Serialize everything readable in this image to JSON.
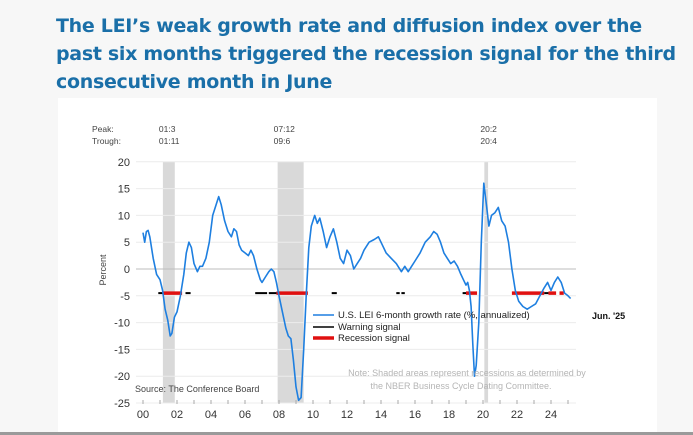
{
  "headline": "The LEI’s weak growth rate and diffusion index over the past six months triggered the recession signal for the third consecutive month in June",
  "chart_data": {
    "type": "line",
    "title": "",
    "ylabel": "Percent",
    "xlabel": "",
    "ylim": [
      -25,
      20
    ],
    "xlim": [
      2000,
      2025.7
    ],
    "y_ticks": [
      "20",
      "15",
      "10",
      "5",
      "0",
      "-5",
      "-10",
      "-15",
      "-20",
      "-25"
    ],
    "y_tick_values": [
      20,
      15,
      10,
      5,
      0,
      -5,
      -10,
      -15,
      -20,
      -25
    ],
    "x_ticks": [
      "00",
      "02",
      "04",
      "06",
      "08",
      "10",
      "12",
      "14",
      "16",
      "18",
      "20",
      "22",
      "24"
    ],
    "x_tick_values": [
      2000,
      2002,
      2004,
      2006,
      2008,
      2010,
      2012,
      2014,
      2016,
      2018,
      2020,
      2022,
      2024
    ],
    "grid": true,
    "peak_label": "Peak:",
    "trough_label": "Trough:",
    "recessions": [
      {
        "peak": "01:3",
        "trough": "01:11",
        "start": 2001.17,
        "end": 2001.87
      },
      {
        "peak": "07:12",
        "trough": "09:6",
        "start": 2007.92,
        "end": 2009.45
      },
      {
        "peak": "20:2",
        "trough": "20:4",
        "start": 2020.08,
        "end": 2020.3
      }
    ],
    "series": [
      {
        "name": "U.S. LEI 6-month growth rate (%, annualized)",
        "color": "#1e7fe0",
        "points": [
          [
            2000.0,
            6.8
          ],
          [
            2000.1,
            5.0
          ],
          [
            2000.2,
            7.0
          ],
          [
            2000.3,
            7.2
          ],
          [
            2000.4,
            6.0
          ],
          [
            2000.6,
            2.0
          ],
          [
            2000.8,
            -1.0
          ],
          [
            2001.0,
            -2.0
          ],
          [
            2001.15,
            -4.0
          ],
          [
            2001.3,
            -7.5
          ],
          [
            2001.45,
            -9.5
          ],
          [
            2001.6,
            -12.5
          ],
          [
            2001.7,
            -12.0
          ],
          [
            2001.85,
            -9.0
          ],
          [
            2002.0,
            -8.0
          ],
          [
            2002.2,
            -5.0
          ],
          [
            2002.4,
            -1.0
          ],
          [
            2002.55,
            3.0
          ],
          [
            2002.7,
            5.0
          ],
          [
            2002.85,
            4.0
          ],
          [
            2003.0,
            1.0
          ],
          [
            2003.2,
            -0.5
          ],
          [
            2003.35,
            0.5
          ],
          [
            2003.5,
            0.5
          ],
          [
            2003.7,
            2.0
          ],
          [
            2003.9,
            5.0
          ],
          [
            2004.1,
            10.0
          ],
          [
            2004.3,
            12.0
          ],
          [
            2004.45,
            13.5
          ],
          [
            2004.6,
            12.0
          ],
          [
            2004.8,
            9.0
          ],
          [
            2005.0,
            7.0
          ],
          [
            2005.2,
            6.0
          ],
          [
            2005.35,
            7.5
          ],
          [
            2005.5,
            7.0
          ],
          [
            2005.65,
            4.5
          ],
          [
            2005.8,
            3.5
          ],
          [
            2006.0,
            3.0
          ],
          [
            2006.2,
            2.5
          ],
          [
            2006.35,
            3.5
          ],
          [
            2006.5,
            2.5
          ],
          [
            2006.7,
            0.0
          ],
          [
            2006.9,
            -2.0
          ],
          [
            2007.0,
            -2.5
          ],
          [
            2007.2,
            -1.5
          ],
          [
            2007.4,
            -0.5
          ],
          [
            2007.55,
            0.0
          ],
          [
            2007.7,
            -0.5
          ],
          [
            2007.85,
            -2.5
          ],
          [
            2008.0,
            -5.0
          ],
          [
            2008.2,
            -8.0
          ],
          [
            2008.4,
            -11.0
          ],
          [
            2008.55,
            -12.5
          ],
          [
            2008.7,
            -13.0
          ],
          [
            2008.85,
            -17.0
          ],
          [
            2009.0,
            -22.0
          ],
          [
            2009.15,
            -24.5
          ],
          [
            2009.3,
            -24.0
          ],
          [
            2009.45,
            -15.0
          ],
          [
            2009.6,
            -5.0
          ],
          [
            2009.75,
            4.0
          ],
          [
            2009.9,
            8.0
          ],
          [
            2010.1,
            10.0
          ],
          [
            2010.25,
            8.5
          ],
          [
            2010.4,
            9.5
          ],
          [
            2010.6,
            7.0
          ],
          [
            2010.8,
            4.0
          ],
          [
            2011.0,
            6.0
          ],
          [
            2011.2,
            7.5
          ],
          [
            2011.4,
            5.0
          ],
          [
            2011.6,
            2.0
          ],
          [
            2011.8,
            1.0
          ],
          [
            2012.0,
            3.5
          ],
          [
            2012.2,
            2.5
          ],
          [
            2012.4,
            0.0
          ],
          [
            2012.6,
            1.0
          ],
          [
            2012.8,
            2.0
          ],
          [
            2013.0,
            3.5
          ],
          [
            2013.3,
            5.0
          ],
          [
            2013.6,
            5.5
          ],
          [
            2013.85,
            6.0
          ],
          [
            2014.0,
            5.0
          ],
          [
            2014.3,
            3.0
          ],
          [
            2014.6,
            2.0
          ],
          [
            2014.9,
            1.0
          ],
          [
            2015.2,
            -0.5
          ],
          [
            2015.4,
            0.5
          ],
          [
            2015.6,
            -0.5
          ],
          [
            2015.8,
            0.5
          ],
          [
            2016.0,
            1.5
          ],
          [
            2016.3,
            3.0
          ],
          [
            2016.6,
            5.0
          ],
          [
            2016.9,
            6.0
          ],
          [
            2017.1,
            7.0
          ],
          [
            2017.3,
            6.5
          ],
          [
            2017.5,
            5.0
          ],
          [
            2017.7,
            3.0
          ],
          [
            2017.9,
            2.0
          ],
          [
            2018.1,
            1.0
          ],
          [
            2018.3,
            1.5
          ],
          [
            2018.5,
            0.5
          ],
          [
            2018.7,
            -1.0
          ],
          [
            2018.85,
            -2.0
          ],
          [
            2019.0,
            -3.0
          ],
          [
            2019.1,
            -2.5
          ],
          [
            2019.2,
            -4.0
          ],
          [
            2019.3,
            -7.0
          ],
          [
            2019.4,
            -14.0
          ],
          [
            2019.5,
            -20.0
          ],
          [
            2019.6,
            -18.0
          ],
          [
            2019.75,
            -10.0
          ],
          [
            2019.9,
            5.0
          ],
          [
            2020.05,
            16.0
          ],
          [
            2020.2,
            12.0
          ],
          [
            2020.35,
            8.0
          ],
          [
            2020.5,
            10.0
          ],
          [
            2020.7,
            10.5
          ],
          [
            2020.9,
            11.5
          ],
          [
            2021.1,
            9.0
          ],
          [
            2021.3,
            8.0
          ],
          [
            2021.5,
            5.0
          ],
          [
            2021.7,
            0.0
          ],
          [
            2021.9,
            -4.0
          ],
          [
            2022.1,
            -6.0
          ],
          [
            2022.35,
            -7.0
          ],
          [
            2022.6,
            -7.5
          ],
          [
            2022.85,
            -7.0
          ],
          [
            2023.1,
            -6.5
          ],
          [
            2023.35,
            -5.0
          ],
          [
            2023.6,
            -3.5
          ],
          [
            2023.8,
            -2.5
          ],
          [
            2024.0,
            -4.0
          ],
          [
            2024.2,
            -2.5
          ],
          [
            2024.4,
            -1.5
          ],
          [
            2024.6,
            -2.5
          ],
          [
            2024.8,
            -4.5
          ],
          [
            2025.0,
            -5.0
          ],
          [
            2025.15,
            -5.5
          ]
        ]
      }
    ],
    "warning_signal": {
      "name": "Warning signal",
      "color": "#000000",
      "level": -4.5,
      "segments": [
        [
          2000.9,
          2001.2
        ],
        [
          2002.5,
          2002.8
        ],
        [
          2006.6,
          2007.3
        ],
        [
          2007.4,
          2007.85
        ],
        [
          2011.1,
          2011.4
        ],
        [
          2014.9,
          2015.1
        ],
        [
          2015.2,
          2015.4
        ],
        [
          2018.8,
          2019.0
        ],
        [
          2023.6,
          2023.85
        ]
      ]
    },
    "recession_signal": {
      "name": "Recession signal",
      "color": "#e01010",
      "level": -4.5,
      "segments": [
        [
          2001.2,
          2002.3
        ],
        [
          2007.85,
          2009.7
        ],
        [
          2019.0,
          2019.65
        ],
        [
          2021.7,
          2023.6
        ],
        [
          2023.85,
          2024.3
        ],
        [
          2024.5,
          2024.75
        ]
      ]
    },
    "end_label": "Jun. '25",
    "source": "Source: The Conference Board",
    "note_line1": "Note: Shaded areas represent recessions as determined by",
    "note_line2": "the NBER Business Cycle Dating Committee."
  }
}
